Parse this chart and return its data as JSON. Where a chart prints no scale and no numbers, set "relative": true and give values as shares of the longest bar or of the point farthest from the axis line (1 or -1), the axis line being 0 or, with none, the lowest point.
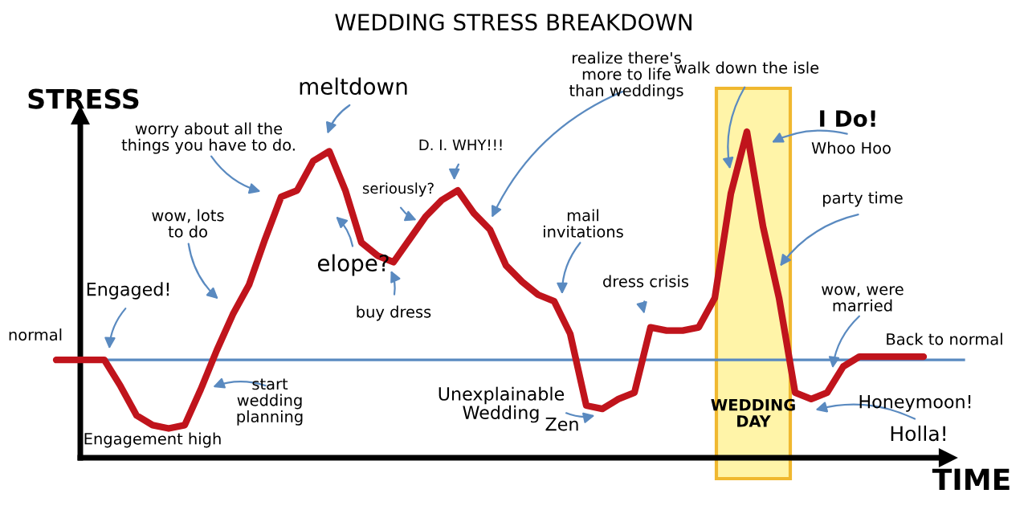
{
  "chart_data": {
    "type": "line",
    "title": "WEDDING STRESS BREAKDOWN",
    "xlabel": "TIME",
    "ylabel": "STRESS",
    "relative": true,
    "categories": [
      null,
      null,
      null,
      null,
      null,
      null,
      null,
      null,
      null,
      null,
      null,
      null,
      null,
      null,
      null,
      null,
      null,
      null,
      null,
      null,
      null,
      null,
      null,
      null,
      null,
      null,
      null,
      null,
      null,
      null,
      null,
      null,
      null,
      null,
      null,
      null,
      null,
      null,
      null,
      null,
      null,
      null,
      null,
      null,
      null,
      null,
      null,
      null,
      null,
      null,
      null,
      null,
      null,
      null,
      null
    ],
    "series": [
      {
        "color": "#c0141c",
        "values": [
          0.3,
          0.3,
          0.3,
          0.3,
          0.22,
          0.13,
          0.1,
          0.09,
          0.1,
          0.21,
          0.33,
          0.44,
          0.53,
          0.67,
          0.8,
          0.82,
          0.91,
          0.94,
          0.82,
          0.66,
          0.62,
          0.6,
          0.67,
          0.74,
          0.79,
          0.82,
          0.75,
          0.7,
          0.59,
          0.54,
          0.5,
          0.48,
          0.38,
          0.16,
          0.15,
          0.18,
          0.2,
          0.4,
          0.39,
          0.39,
          0.4,
          0.49,
          0.81,
          1.0,
          0.71,
          0.49,
          0.2,
          0.18,
          0.2,
          0.28,
          0.31,
          0.31,
          0.31,
          0.31,
          0.31
        ]
      }
    ],
    "ref_lines": [
      {
        "axis": "y",
        "value": 0.3,
        "label": "normal",
        "color": "#5a8ac0"
      }
    ],
    "annotations": [
      "worry about all the\nthings you have to do.",
      "meltdown",
      "D. I. WHY!!!",
      "seriously?",
      "realize there's\nmore to life\nthan weddings",
      "walk down the isle",
      "I Do!",
      "Whoo Hoo",
      "party time",
      "wow, lots\nto do",
      "elope?",
      "buy dress",
      "mail\ninvitations",
      "dress crisis",
      "wow, were\nmarried",
      "Engaged!",
      "start\nwedding\nplanning",
      "Engagement high",
      "Unexplainable\nWedding",
      "Zen",
      "Back to normal",
      "Honeymoon!",
      "Holla!",
      "WEDDING\nDAY"
    ],
    "marker": "none",
    "line_style": "solid"
  }
}
